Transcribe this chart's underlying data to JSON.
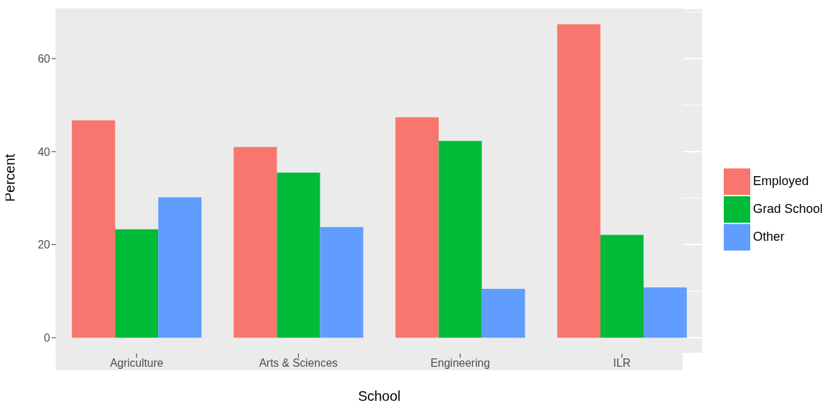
{
  "chart_data": {
    "type": "bar",
    "xlabel": "School",
    "ylabel": "Percent",
    "categories": [
      "Agriculture",
      "Arts & Sciences",
      "Engineering",
      "ILR"
    ],
    "series": [
      {
        "name": "Employed",
        "color": "#f8766d",
        "values": [
          46.7,
          41.0,
          47.4,
          67.4
        ]
      },
      {
        "name": "Grad School",
        "color": "#00ba38",
        "values": [
          23.3,
          35.5,
          42.3,
          22.1
        ]
      },
      {
        "name": "Other",
        "color": "#619cff",
        "values": [
          30.2,
          23.8,
          10.5,
          10.8
        ]
      }
    ],
    "ylim": [
      -3.4,
      70.8
    ],
    "yticks": [
      0,
      20,
      40,
      60
    ],
    "grid": true,
    "legend": "right"
  }
}
